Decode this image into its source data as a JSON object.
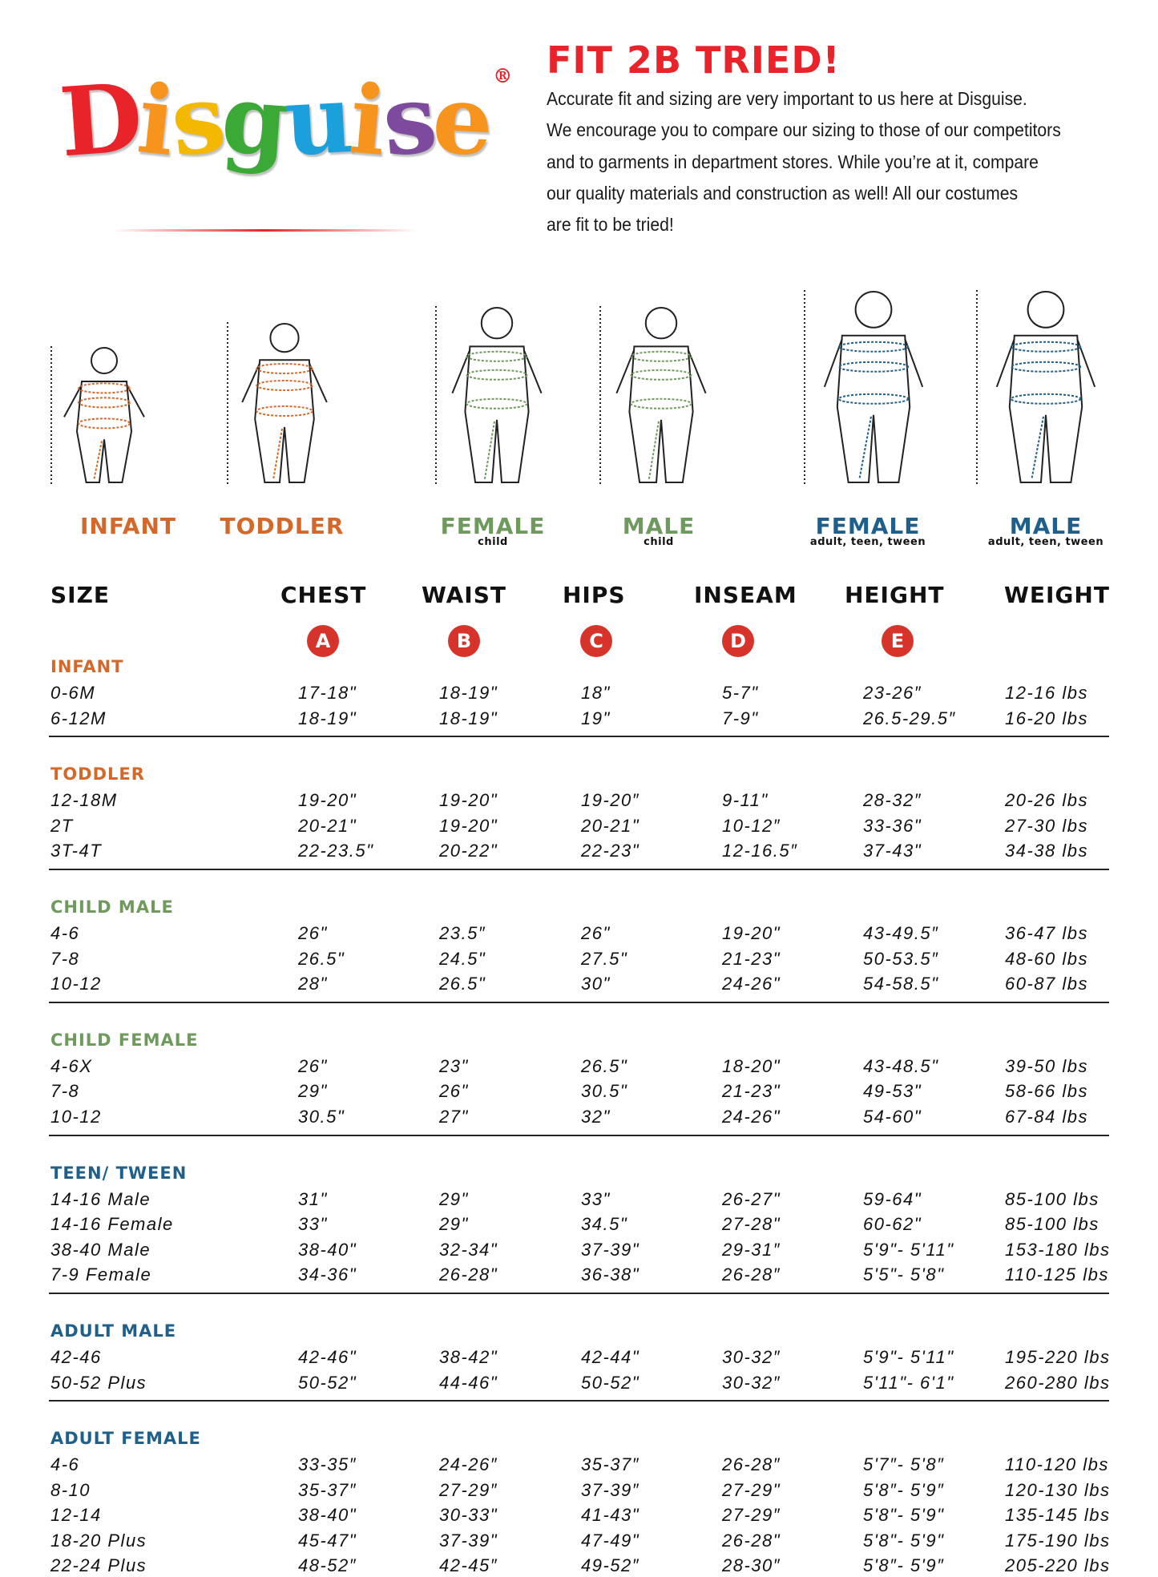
{
  "brand": {
    "letters": [
      "D",
      "i",
      "s",
      "g",
      "u",
      "i",
      "s",
      "e"
    ],
    "letter_colors": [
      "#e8242a",
      "#f7941d",
      "#f5b800",
      "#3aa935",
      "#1ba0dc",
      "#f7941d",
      "#7d4a9e",
      "#f7941d"
    ],
    "registered": "®"
  },
  "headline": "FIT 2B TRIED!",
  "intro_lines": [
    "Accurate fit and sizing are very important to us here at Disguise.",
    "We encourage you to compare our sizing to those of our competitors",
    "and to garments in department stores. While you’re at it, compare",
    "our quality materials and construction as well! All our costumes",
    "are fit to be tried!"
  ],
  "colors": {
    "red": "#e8242a",
    "orange": "#d4672a",
    "green": "#6e9a5e",
    "blue": "#1f5f8b"
  },
  "figures": [
    {
      "label": "INFANT",
      "sub": "",
      "color": "#d4672a",
      "marks": [
        "A",
        "B",
        "C",
        "D",
        "E"
      ]
    },
    {
      "label": "TODDLER",
      "sub": "",
      "color": "#d4672a",
      "marks": [
        "A",
        "B",
        "C",
        "D",
        "E"
      ]
    },
    {
      "label": "FEMALE",
      "sub": "child",
      "color": "#6e9a5e",
      "marks": [
        "A",
        "B",
        "C",
        "D",
        "E"
      ]
    },
    {
      "label": "MALE",
      "sub": "child",
      "color": "#6e9a5e",
      "marks": [
        "A",
        "B",
        "C",
        "D",
        "E"
      ]
    },
    {
      "label": "FEMALE",
      "sub": "adult, teen, tween",
      "color": "#1f5f8b",
      "marks": [
        "A",
        "B",
        "C",
        "D",
        "E"
      ]
    },
    {
      "label": "MALE",
      "sub": "adult, teen, tween",
      "color": "#1f5f8b",
      "marks": [
        "A",
        "B",
        "C",
        "D",
        "E"
      ]
    }
  ],
  "columns": [
    "SIZE",
    "CHEST",
    "WAIST",
    "HIPS",
    "INSEAM",
    "HEIGHT",
    "WEIGHT"
  ],
  "column_markers": [
    "A",
    "B",
    "C",
    "D",
    "E"
  ],
  "groups": [
    {
      "title": "INFANT",
      "color": "#d4672a",
      "rows": [
        [
          "0-6M",
          "17-18\"",
          "18-19\"",
          "18\"",
          "5-7\"",
          "23-26″",
          "12-16 lbs"
        ],
        [
          "6-12M",
          "18-19\"",
          "18-19\"",
          "19\"",
          "7-9\"",
          "26.5-29.5″",
          "16-20 lbs"
        ]
      ]
    },
    {
      "title": "TODDLER",
      "color": "#d4672a",
      "rows": [
        [
          "12-18M",
          "19-20\"",
          "19-20\"",
          "19-20″",
          "9-11\"",
          "28-32″",
          "20-26 lbs"
        ],
        [
          "2T",
          "20-21\"",
          "19-20\"",
          "20-21\"",
          "10-12″",
          "33-36\"",
          "27-30 lbs"
        ],
        [
          "3T-4T",
          "22-23.5\"",
          "20-22\"",
          "22-23\"",
          "12-16.5″",
          "37-43\"",
          "34-38 lbs"
        ]
      ]
    },
    {
      "title": "CHILD MALE",
      "color": "#6e9a5e",
      "rows": [
        [
          "4-6",
          "26\"",
          "23.5″",
          "26\"",
          "19-20\"",
          "43-49.5″",
          "36-47 lbs"
        ],
        [
          "7-8",
          "26.5\"",
          "24.5\"",
          "27.5\"",
          "21-23\"",
          "50-53.5″",
          "48-60 lbs"
        ],
        [
          "10-12",
          "28\"",
          "26.5\"",
          "30\"",
          "24-26\"",
          "54-58.5\"",
          "60-87 lbs"
        ]
      ]
    },
    {
      "title": "CHILD FEMALE",
      "color": "#6e9a5e",
      "rows": [
        [
          "4-6X",
          "26\"",
          "23\"",
          "26.5\"",
          "18-20\"",
          "43-48.5\"",
          "39-50 lbs"
        ],
        [
          "7-8",
          "29\"",
          "26\"",
          "30.5\"",
          "21-23\"",
          "49-53\"",
          "58-66 lbs"
        ],
        [
          "10-12",
          "30.5\"",
          "27\"",
          "32\"",
          "24-26\"",
          "54-60\"",
          "67-84 lbs"
        ]
      ]
    },
    {
      "title": "TEEN/ TWEEN",
      "color": "#1f5f8b",
      "rows": [
        [
          "14-16 Male",
          "31\"",
          "29\"",
          "33\"",
          "26-27\"",
          "59-64\"",
          "85-100 lbs"
        ],
        [
          "14-16 Female",
          "33\"",
          "29\"",
          "34.5\"",
          "27-28\"",
          "60-62\"",
          "85-100 lbs"
        ],
        [
          "38-40 Male",
          "38-40\"",
          "32-34\"",
          "37-39\"",
          "29-31″",
          "5'9\"- 5'11\"",
          "153-180 lbs"
        ],
        [
          "7-9 Female",
          "34-36\"",
          "26-28\"",
          "36-38\"",
          "26-28″",
          "5'5\"- 5'8\"",
          "110-125 lbs"
        ]
      ]
    },
    {
      "title": "ADULT MALE",
      "color": "#1f5f8b",
      "rows": [
        [
          "42-46",
          "42-46\"",
          "38-42\"",
          "42-44\"",
          "30-32″",
          "5'9\"- 5'11\"",
          "195-220 lbs"
        ],
        [
          "50-52 Plus",
          "50-52\"",
          "44-46\"",
          "50-52\"",
          "30-32″",
          "5'11\"- 6'1\"",
          "260-280 lbs"
        ]
      ]
    },
    {
      "title": "ADULT FEMALE",
      "color": "#1f5f8b",
      "rows": [
        [
          "4-6",
          "33-35″",
          "24-26″",
          "35-37″",
          "26-28″",
          "5'7″- 5'8″",
          "110-120 lbs"
        ],
        [
          "8-10",
          "35-37″",
          "27-29″",
          "37-39″",
          "27-29\"",
          "5'8″- 5'9″",
          "120-130 lbs"
        ],
        [
          "12-14",
          "38-40\"",
          "30-33\"",
          "41-43\"",
          "27-29″",
          "5'8\"- 5'9\"",
          "135-145 lbs"
        ],
        [
          "18-20 Plus",
          "45-47\"",
          "37-39\"",
          "47-49\"",
          "26-28\"",
          "5'8\"- 5'9\"",
          "175-190 lbs"
        ],
        [
          "22-24 Plus",
          "48-52″",
          "42-45″",
          "49-52″",
          "28-30″",
          "5'8″- 5'9″",
          "205-220 lbs"
        ]
      ]
    }
  ]
}
